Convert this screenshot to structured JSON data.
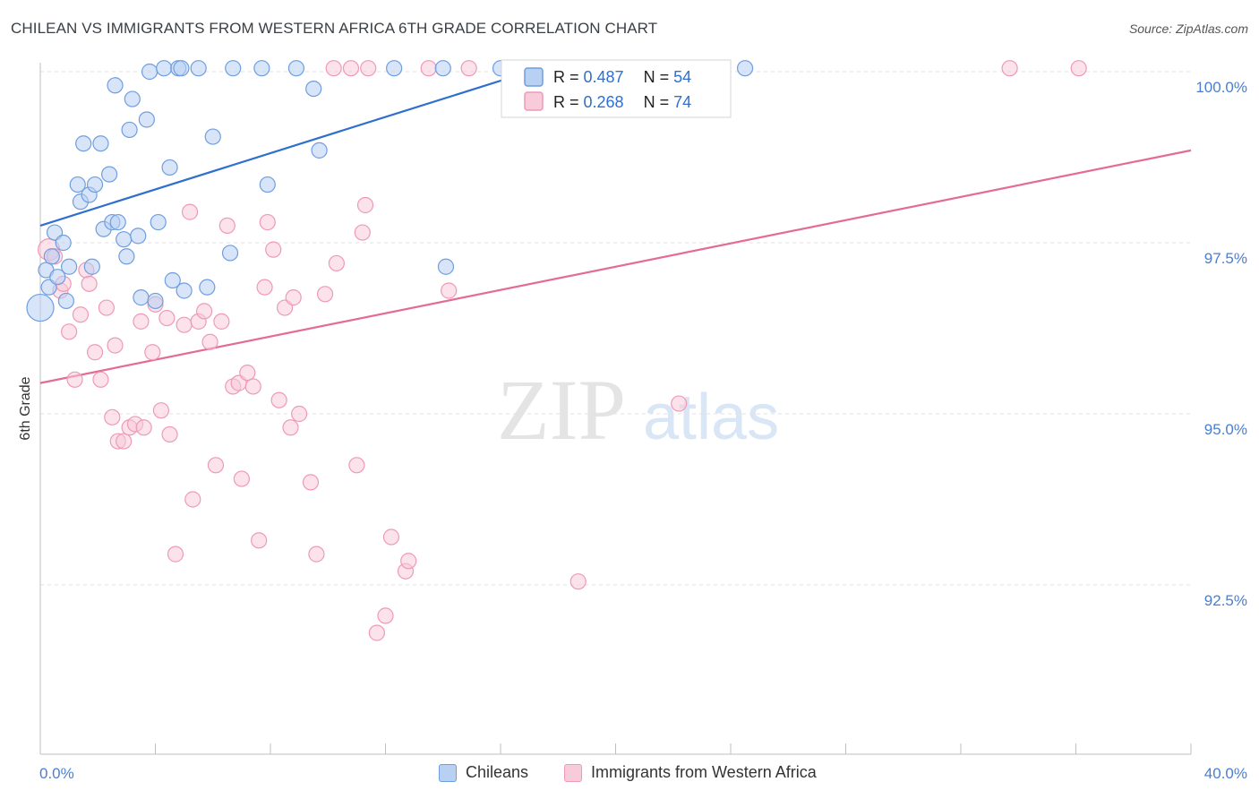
{
  "title": "CHILEAN VS IMMIGRANTS FROM WESTERN AFRICA 6TH GRADE CORRELATION CHART",
  "source": "Source: ZipAtlas.com",
  "watermark": {
    "zip": "ZIP",
    "atlas": "atlas"
  },
  "chart_data": {
    "type": "scatter",
    "ylabel": "6th Grade",
    "xlim": [
      0,
      40
    ],
    "ylim": [
      90.0,
      100.5
    ],
    "x_tick_labels": [
      "0.0%",
      "40.0%"
    ],
    "y_ticks": [
      {
        "value": 100.0,
        "label": "100.0%"
      },
      {
        "value": 97.5,
        "label": "97.5%"
      },
      {
        "value": 95.0,
        "label": "95.0%"
      },
      {
        "value": 92.5,
        "label": "92.5%"
      }
    ],
    "grid": true,
    "legend_position": "top-center",
    "series": [
      {
        "name": "Chileans",
        "color": "#6f9ee0",
        "fill": "#b8d0f2",
        "line_color": "#2f6fce",
        "R": "0.487",
        "N": "54",
        "trend": {
          "x": [
            0,
            17
          ],
          "y": [
            97.75,
            100.0
          ]
        },
        "points": [
          [
            0.0,
            96.55
          ],
          [
            0.2,
            97.1
          ],
          [
            0.3,
            96.85
          ],
          [
            0.4,
            97.3
          ],
          [
            0.5,
            97.65
          ],
          [
            0.6,
            97.0
          ],
          [
            0.8,
            97.5
          ],
          [
            0.9,
            96.65
          ],
          [
            1.0,
            97.15
          ],
          [
            1.3,
            98.35
          ],
          [
            1.4,
            98.1
          ],
          [
            1.5,
            98.95
          ],
          [
            1.7,
            98.2
          ],
          [
            1.8,
            97.15
          ],
          [
            1.9,
            98.35
          ],
          [
            2.1,
            98.95
          ],
          [
            2.2,
            97.7
          ],
          [
            2.4,
            98.5
          ],
          [
            2.5,
            97.8
          ],
          [
            2.6,
            99.8
          ],
          [
            2.7,
            97.8
          ],
          [
            2.9,
            97.55
          ],
          [
            3.0,
            97.3
          ],
          [
            3.1,
            99.15
          ],
          [
            3.2,
            99.6
          ],
          [
            3.4,
            97.6
          ],
          [
            3.5,
            96.7
          ],
          [
            3.7,
            99.3
          ],
          [
            3.8,
            100.0
          ],
          [
            4.0,
            96.65
          ],
          [
            4.1,
            97.8
          ],
          [
            4.3,
            100.05
          ],
          [
            4.5,
            98.6
          ],
          [
            4.6,
            96.95
          ],
          [
            4.8,
            100.05
          ],
          [
            4.9,
            100.05
          ],
          [
            5.0,
            96.8
          ],
          [
            5.5,
            100.05
          ],
          [
            5.8,
            96.85
          ],
          [
            6.0,
            99.05
          ],
          [
            6.6,
            97.35
          ],
          [
            6.7,
            100.05
          ],
          [
            7.7,
            100.05
          ],
          [
            7.9,
            98.35
          ],
          [
            8.9,
            100.05
          ],
          [
            9.5,
            99.75
          ],
          [
            9.7,
            98.85
          ],
          [
            12.3,
            100.05
          ],
          [
            14.0,
            100.05
          ],
          [
            14.1,
            97.15
          ],
          [
            16.0,
            100.05
          ],
          [
            18.0,
            100.05
          ],
          [
            19.5,
            100.05
          ],
          [
            24.5,
            100.05
          ]
        ]
      },
      {
        "name": "Immigrants from Western Africa",
        "color": "#ee9ab7",
        "fill": "#f8cbdb",
        "line_color": "#e46b95",
        "R": "0.268",
        "N": "74",
        "trend": {
          "x": [
            0,
            40
          ],
          "y": [
            95.45,
            98.85
          ]
        },
        "points": [
          [
            0.3,
            97.4
          ],
          [
            0.5,
            97.3
          ],
          [
            0.7,
            96.8
          ],
          [
            0.8,
            96.9
          ],
          [
            1.0,
            96.2
          ],
          [
            1.2,
            95.5
          ],
          [
            1.4,
            96.45
          ],
          [
            1.6,
            97.1
          ],
          [
            1.7,
            96.9
          ],
          [
            1.9,
            95.9
          ],
          [
            2.1,
            95.5
          ],
          [
            2.3,
            96.55
          ],
          [
            2.5,
            94.95
          ],
          [
            2.6,
            96.0
          ],
          [
            2.7,
            94.6
          ],
          [
            2.9,
            94.6
          ],
          [
            3.1,
            94.8
          ],
          [
            3.3,
            94.85
          ],
          [
            3.5,
            96.35
          ],
          [
            3.6,
            94.8
          ],
          [
            3.9,
            95.9
          ],
          [
            4.0,
            96.6
          ],
          [
            4.2,
            95.05
          ],
          [
            4.4,
            96.4
          ],
          [
            4.5,
            94.7
          ],
          [
            4.7,
            92.95
          ],
          [
            5.0,
            96.3
          ],
          [
            5.2,
            97.95
          ],
          [
            5.3,
            93.75
          ],
          [
            5.5,
            96.35
          ],
          [
            5.7,
            96.5
          ],
          [
            5.9,
            96.05
          ],
          [
            6.1,
            94.25
          ],
          [
            6.3,
            96.35
          ],
          [
            6.5,
            97.75
          ],
          [
            6.7,
            95.4
          ],
          [
            6.9,
            95.45
          ],
          [
            7.0,
            94.05
          ],
          [
            7.2,
            95.6
          ],
          [
            7.4,
            95.4
          ],
          [
            7.6,
            93.15
          ],
          [
            7.8,
            96.85
          ],
          [
            7.9,
            97.8
          ],
          [
            8.1,
            97.4
          ],
          [
            8.3,
            95.2
          ],
          [
            8.5,
            96.55
          ],
          [
            8.7,
            94.8
          ],
          [
            8.8,
            96.7
          ],
          [
            9.0,
            95.0
          ],
          [
            9.4,
            94.0
          ],
          [
            9.6,
            92.95
          ],
          [
            9.9,
            96.75
          ],
          [
            10.2,
            100.05
          ],
          [
            10.3,
            97.2
          ],
          [
            10.8,
            100.05
          ],
          [
            11.0,
            94.25
          ],
          [
            11.2,
            97.65
          ],
          [
            11.3,
            98.05
          ],
          [
            11.4,
            100.05
          ],
          [
            11.7,
            91.8
          ],
          [
            12.0,
            92.05
          ],
          [
            12.2,
            93.2
          ],
          [
            12.7,
            92.7
          ],
          [
            12.8,
            92.85
          ],
          [
            13.5,
            100.05
          ],
          [
            14.2,
            96.8
          ],
          [
            14.9,
            100.05
          ],
          [
            16.6,
            100.05
          ],
          [
            17.2,
            100.05
          ],
          [
            19.0,
            100.05
          ],
          [
            18.7,
            92.55
          ],
          [
            22.2,
            95.15
          ],
          [
            33.7,
            100.05
          ],
          [
            36.1,
            100.05
          ]
        ]
      }
    ]
  }
}
